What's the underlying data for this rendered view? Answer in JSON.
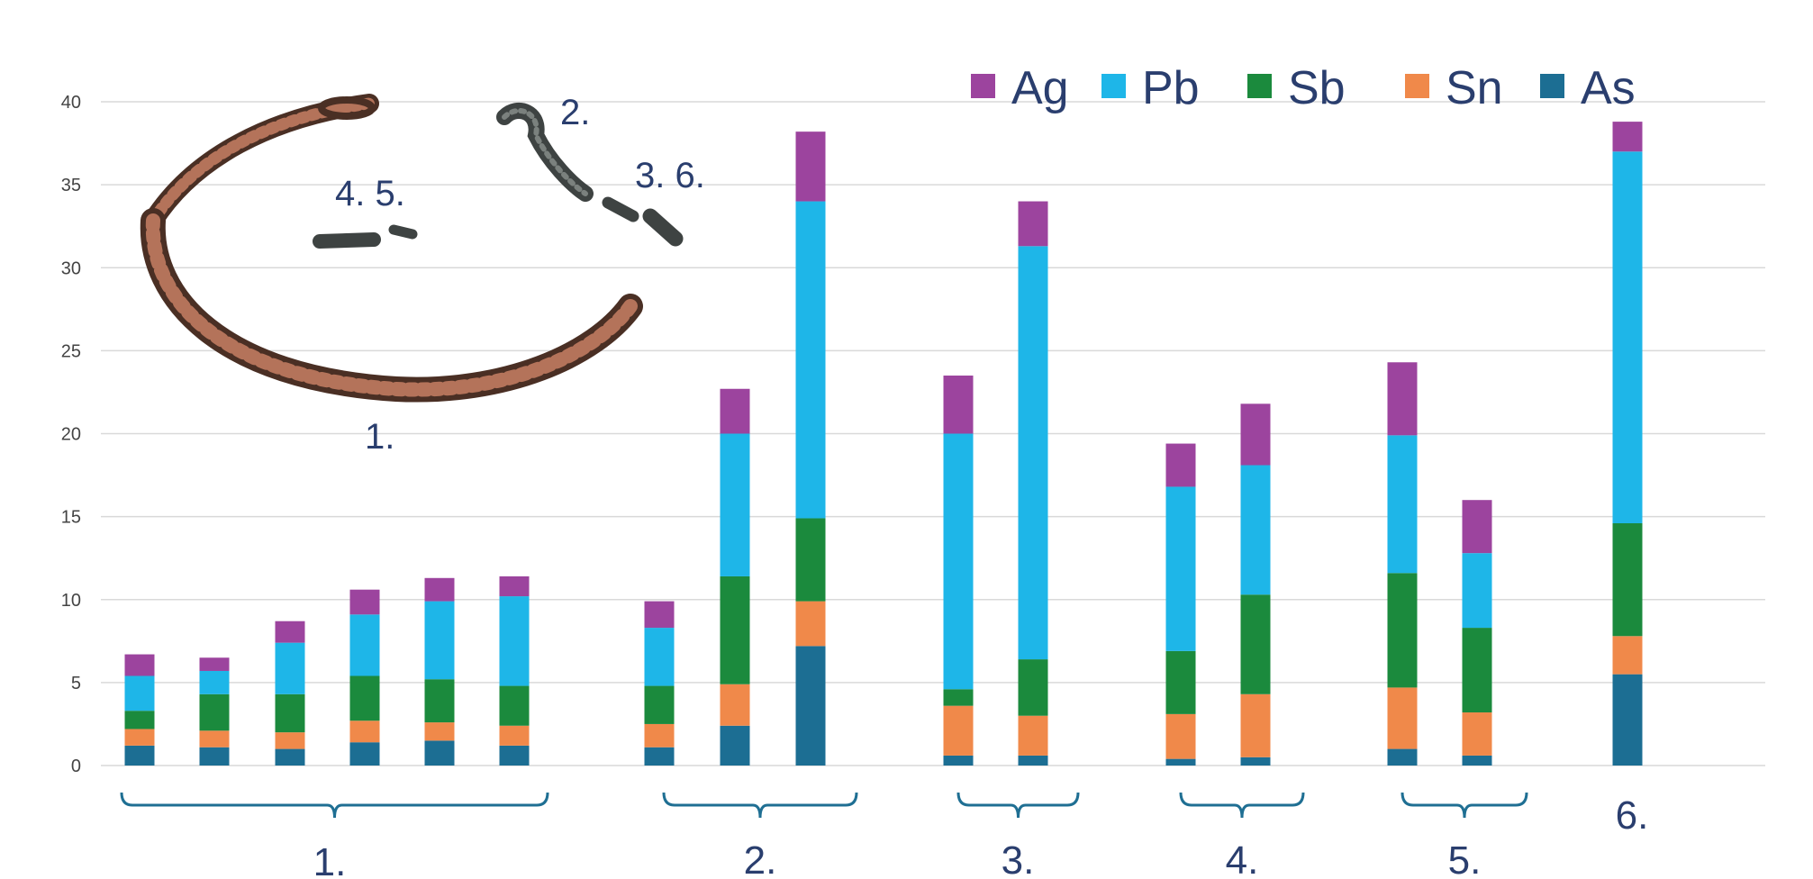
{
  "chart_data": {
    "type": "bar",
    "stacked": true,
    "ylim": [
      0,
      40
    ],
    "yticks": [
      0,
      5,
      10,
      15,
      20,
      25,
      30,
      35,
      40
    ],
    "grid": true,
    "legend_position": "top-right",
    "series": [
      {
        "name": "As",
        "color": "#1c6e93"
      },
      {
        "name": "Sn",
        "color": "#f0894a"
      },
      {
        "name": "Sb",
        "color": "#1b8a3d"
      },
      {
        "name": "Pb",
        "color": "#1eb6e8"
      },
      {
        "name": "Ag",
        "color": "#9c449e"
      }
    ],
    "legend_order": [
      "Ag",
      "Pb",
      "Sb",
      "Sn",
      "As"
    ],
    "bars": [
      {
        "group": "1.",
        "values": [
          1.2,
          1.0,
          1.1,
          2.1,
          1.3
        ]
      },
      {
        "group": "1.",
        "values": [
          1.1,
          1.0,
          2.2,
          1.4,
          0.8
        ]
      },
      {
        "group": "1.",
        "values": [
          1.0,
          1.0,
          2.3,
          3.1,
          1.3
        ]
      },
      {
        "group": "1.",
        "values": [
          1.4,
          1.3,
          2.7,
          3.7,
          1.5
        ]
      },
      {
        "group": "1.",
        "values": [
          1.5,
          1.1,
          2.6,
          4.7,
          1.4
        ]
      },
      {
        "group": "1.",
        "values": [
          1.2,
          1.2,
          2.4,
          5.4,
          1.2
        ]
      },
      {
        "group": "2.",
        "values": [
          1.1,
          1.4,
          2.3,
          3.5,
          1.6
        ]
      },
      {
        "group": "2.",
        "values": [
          2.4,
          2.5,
          6.5,
          8.6,
          2.7
        ]
      },
      {
        "group": "2.",
        "values": [
          7.2,
          2.7,
          5.0,
          19.1,
          4.2
        ]
      },
      {
        "group": "3.",
        "values": [
          0.6,
          3.0,
          1.0,
          15.4,
          3.5
        ]
      },
      {
        "group": "3.",
        "values": [
          0.6,
          2.4,
          3.4,
          24.9,
          2.7
        ]
      },
      {
        "group": "4.",
        "values": [
          0.4,
          2.7,
          3.8,
          9.9,
          2.6
        ]
      },
      {
        "group": "4.",
        "values": [
          0.5,
          3.8,
          6.0,
          7.8,
          3.7
        ]
      },
      {
        "group": "5.",
        "values": [
          1.0,
          3.7,
          6.9,
          8.3,
          4.4
        ]
      },
      {
        "group": "5.",
        "values": [
          0.6,
          2.6,
          5.1,
          4.5,
          3.2
        ]
      },
      {
        "group": "6.",
        "values": [
          5.5,
          2.3,
          6.8,
          22.4,
          1.8
        ]
      }
    ],
    "groups": [
      {
        "label": "1.",
        "bar_count": 6
      },
      {
        "label": "2.",
        "bar_count": 3
      },
      {
        "label": "3.",
        "bar_count": 2
      },
      {
        "label": "4.",
        "bar_count": 2
      },
      {
        "label": "5.",
        "bar_count": 2
      },
      {
        "label": "6.",
        "bar_count": 1
      }
    ]
  },
  "photo_labels": [
    "1.",
    "2.",
    "3. 6.",
    "4. 5."
  ]
}
